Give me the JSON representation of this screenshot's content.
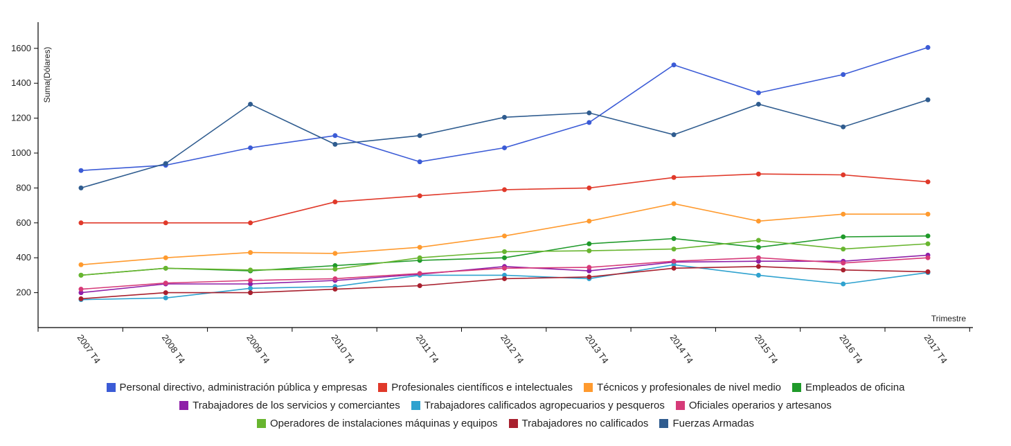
{
  "chart_data": {
    "type": "line",
    "title": "",
    "xlabel": "Trimestre",
    "ylabel": "Suma(Dólares)",
    "categories": [
      "2007 T4",
      "2008 T4",
      "2009 T4",
      "2010 T4",
      "2011 T4",
      "2012 T4",
      "2013 T4",
      "2014 T4",
      "2015 T4",
      "2016 T4",
      "2017 T4"
    ],
    "ylim": [
      0,
      1750
    ],
    "yticks": [
      200,
      400,
      600,
      800,
      1000,
      1200,
      1400,
      1600
    ],
    "legend_position": "bottom",
    "grid": false,
    "series": [
      {
        "name": "Personal directivo, administración pública y empresas",
        "color": "#3b5bd6",
        "values": [
          900,
          930,
          1030,
          1100,
          950,
          1030,
          1175,
          1505,
          1345,
          1450,
          1605
        ]
      },
      {
        "name": "Profesionales científicos e intelectuales",
        "color": "#e0392a",
        "values": [
          600,
          600,
          600,
          720,
          755,
          790,
          800,
          860,
          880,
          875,
          835
        ]
      },
      {
        "name": "Técnicos y profesionales de nivel medio",
        "color": "#ff9a2e",
        "values": [
          360,
          400,
          430,
          425,
          460,
          525,
          610,
          710,
          610,
          650,
          650
        ]
      },
      {
        "name": "Empleados de oficina",
        "color": "#1f9a2a",
        "values": [
          300,
          340,
          325,
          355,
          385,
          400,
          480,
          510,
          460,
          520,
          525
        ]
      },
      {
        "name": "Trabajadores de los servicios y comerciantes",
        "color": "#8e1fa8",
        "values": [
          200,
          250,
          250,
          270,
          305,
          350,
          325,
          375,
          380,
          380,
          415
        ]
      },
      {
        "name": "Trabajadores calificados agropecuarios y pesqueros",
        "color": "#2fa2cf",
        "values": [
          160,
          170,
          225,
          235,
          300,
          300,
          280,
          360,
          300,
          250,
          315
        ]
      },
      {
        "name": "Oficiales operarios y artesanos",
        "color": "#d63a78",
        "values": [
          220,
          255,
          270,
          280,
          310,
          340,
          345,
          380,
          400,
          370,
          400
        ]
      },
      {
        "name": "Operadores de instalaciones máquinas y equipos",
        "color": "#68b52f",
        "values": [
          300,
          340,
          330,
          335,
          400,
          435,
          440,
          450,
          500,
          450,
          480
        ]
      },
      {
        "name": "Trabajadores no calificados",
        "color": "#a8202e",
        "values": [
          165,
          200,
          200,
          220,
          240,
          280,
          290,
          340,
          350,
          330,
          320
        ]
      },
      {
        "name": "Fuerzas Armadas",
        "color": "#2f5c8f",
        "values": [
          800,
          940,
          1280,
          1050,
          1100,
          1205,
          1230,
          1105,
          1280,
          1150,
          1305
        ]
      }
    ]
  },
  "legend_rows": [
    [
      0,
      1,
      2,
      3
    ],
    [
      4,
      5,
      6
    ],
    [
      7,
      8,
      9
    ]
  ]
}
